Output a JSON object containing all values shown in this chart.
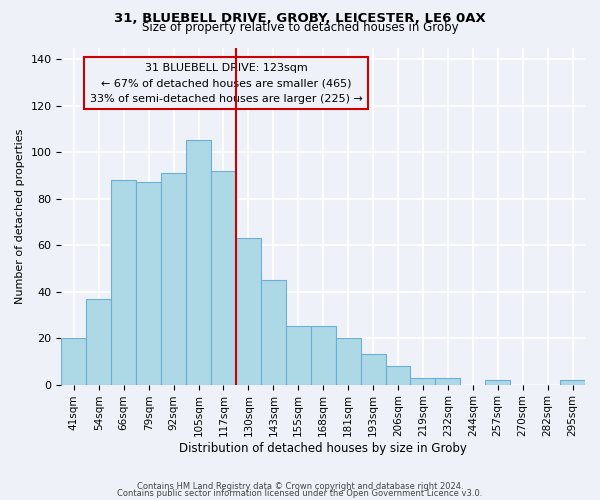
{
  "title1": "31, BLUEBELL DRIVE, GROBY, LEICESTER, LE6 0AX",
  "title2": "Size of property relative to detached houses in Groby",
  "xlabel": "Distribution of detached houses by size in Groby",
  "ylabel": "Number of detached properties",
  "categories": [
    "41sqm",
    "54sqm",
    "66sqm",
    "79sqm",
    "92sqm",
    "105sqm",
    "117sqm",
    "130sqm",
    "143sqm",
    "155sqm",
    "168sqm",
    "181sqm",
    "193sqm",
    "206sqm",
    "219sqm",
    "232sqm",
    "244sqm",
    "257sqm",
    "270sqm",
    "282sqm",
    "295sqm"
  ],
  "values": [
    20,
    37,
    88,
    87,
    91,
    105,
    92,
    63,
    45,
    25,
    25,
    20,
    13,
    8,
    3,
    3,
    0,
    2,
    0,
    0,
    2
  ],
  "bar_color": "#add8e6",
  "bar_edge_color": "#6baed6",
  "vline_x": 6.5,
  "vline_color": "#cc0000",
  "annotation_title": "31 BLUEBELL DRIVE: 123sqm",
  "annotation_line1": "← 67% of detached houses are smaller (465)",
  "annotation_line2": "33% of semi-detached houses are larger (225) →",
  "annotation_box_edge": "#cc0000",
  "ylim": [
    0,
    145
  ],
  "yticks": [
    0,
    20,
    40,
    60,
    80,
    100,
    120,
    140
  ],
  "footer1": "Contains HM Land Registry data © Crown copyright and database right 2024.",
  "footer2": "Contains public sector information licensed under the Open Government Licence v3.0.",
  "background_color": "#eef2f8"
}
